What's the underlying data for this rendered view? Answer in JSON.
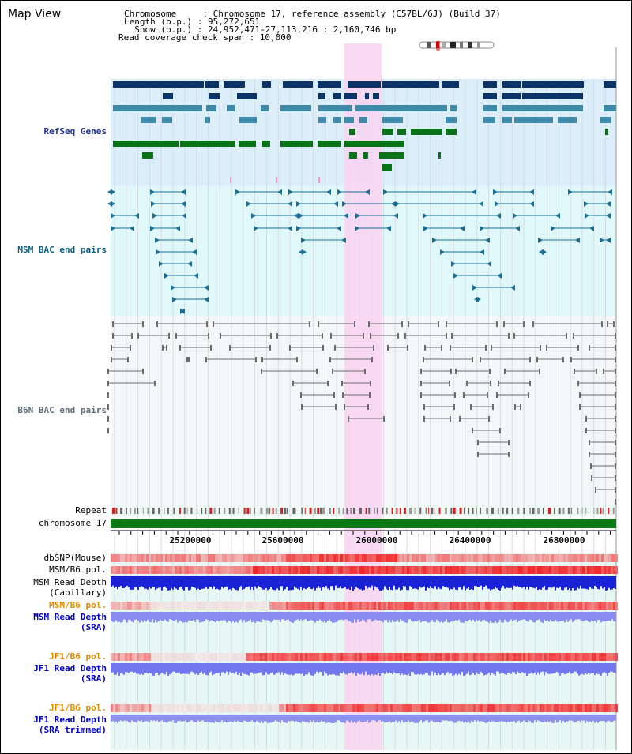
{
  "title": "Map View",
  "header": {
    "chromosome_key": "Chromosome     :",
    "chromosome_value": "Chromosome 17, reference assembly (C57BL/6J) (Build 37)",
    "length_key": "Length (b.p.) :",
    "length_value": "95,272,651",
    "show_key": "  Show (b.p.) :",
    "show_value": "24,952,471-27,113,216 : 2,160,746 bp",
    "coverage_key": "Read coverage check span :",
    "coverage_value": "10,000"
  },
  "tracks": {
    "refseq": "RefSeq Genes",
    "msm_bac": "MSM BAC end pairs",
    "b6n_bac": "B6N BAC end pairs",
    "repeat": "Repeat",
    "chromosome": "chromosome 17",
    "dbsnp": "dbSNP(Mouse)",
    "msm_b6_pol": "MSM/B6 pol.",
    "msm_depth_cap_1": "MSM Read Depth",
    "msm_depth_cap_2": "(Capillary)",
    "msm_b6_pol_2": "MSM/B6 pol.",
    "msm_depth_sra_1": "MSM Read Depth",
    "msm_depth_sra_2": "(SRA)",
    "jf1_b6_pol": "JF1/B6 pol.",
    "jf1_depth_sra_1": "JF1 Read Depth",
    "jf1_depth_sra_2": "(SRA)",
    "jf1_b6_pol_2": "JF1/B6 pol.",
    "jf1_depth_trim_1": "JF1 Read Depth",
    "jf1_depth_trim_2": "(SRA trimmed)"
  },
  "axis": {
    "ticks": [
      "25200000",
      "25600000",
      "26000000",
      "26400000",
      "26800000"
    ]
  },
  "colors": {
    "refseq_bg": "#dbeefa",
    "msm_bg": "#e1f8fb",
    "b6n_bg": "#f4f6f9",
    "highlight": "#f9d3f1",
    "gene_navy": "#0c3366",
    "gene_blue": "#3e8aa9",
    "gene_green": "#0a7317",
    "msm_line": "#1a6e93",
    "b6n_line": "#6c6c6c",
    "chromosome_bar": "#0a7a14"
  }
}
